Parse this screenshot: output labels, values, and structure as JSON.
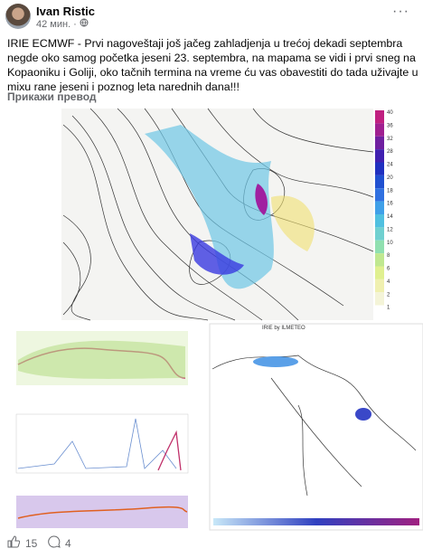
{
  "post": {
    "author": "Ivan Ristic",
    "time": "42 мин. ·",
    "text": "IRIE ECMWF - Prvi nagoveštaji još jačeg zahladjenja u trećoj dekadi septembra negde oko samog početka jeseni 23. septembra, na mapama se vidi i prvi sneg na Kopaoniku i Goliji, oko tačnih termina na vreme ću vas obavestiti do tada uživajte u mixu rane jeseni i poznog leta narednih dana!!!",
    "translate": "Прикажи превод",
    "colorbar": [
      40,
      36,
      32,
      28,
      24,
      20,
      18,
      16,
      14,
      12,
      10,
      8,
      6,
      4,
      2,
      1
    ],
    "map2_title": "IRIE by ILMETEO",
    "reactions": 15,
    "comments": 4
  }
}
